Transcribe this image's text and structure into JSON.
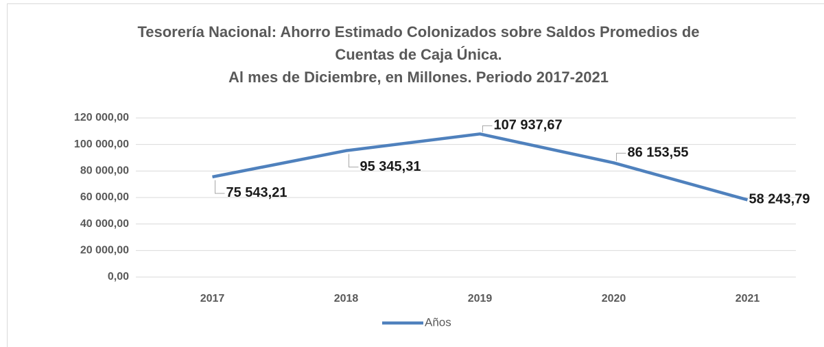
{
  "chart_data": {
    "type": "line",
    "title": [
      "Tesorería Nacional: Ahorro Estimado Colonizados sobre Saldos Promedios de",
      "Cuentas de Caja Única.",
      "Al mes de Diciembre, en Millones.  Periodo 2017-2021"
    ],
    "categories": [
      "2017",
      "2018",
      "2019",
      "2020",
      "2021"
    ],
    "series": [
      {
        "name": "Años",
        "color": "#4f81bd",
        "values": [
          75543.21,
          95345.31,
          107937.67,
          86153.55,
          58243.79
        ],
        "value_labels": [
          "75 543,21",
          "95 345,31",
          "107 937,67",
          "86 153,55",
          "58 243,79"
        ]
      }
    ],
    "ylim": [
      0,
      120000
    ],
    "yticks": [
      {
        "value": 0,
        "label": "0,00"
      },
      {
        "value": 20000,
        "label": "20 000,00"
      },
      {
        "value": 40000,
        "label": "40 000,00"
      },
      {
        "value": 60000,
        "label": "60 000,00"
      },
      {
        "value": 80000,
        "label": "80 000,00"
      },
      {
        "value": 100000,
        "label": "100 000,00"
      },
      {
        "value": 120000,
        "label": "120 000,00"
      }
    ],
    "grid": true,
    "legend": "bottom"
  }
}
